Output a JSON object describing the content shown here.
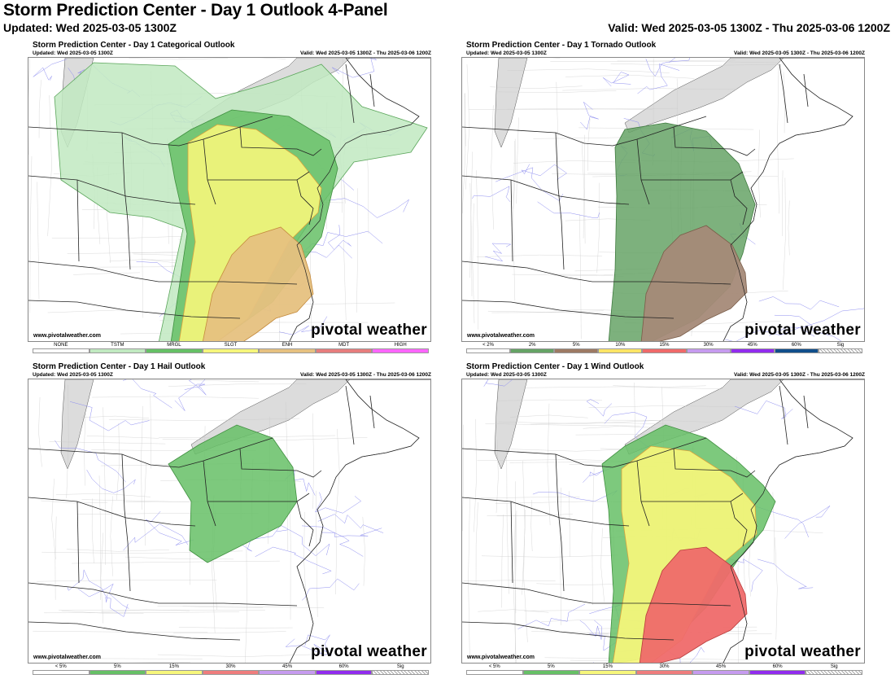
{
  "header": {
    "title": "Storm Prediction Center - Day 1 Outlook 4-Panel",
    "updated": "Updated: Wed 2025-03-05 1300Z",
    "valid": "Valid: Wed 2025-03-05 1300Z - Thu 2025-03-06 1200Z"
  },
  "panels": [
    {
      "title": "Storm Prediction Center - Day 1 Categorical Outlook",
      "updated": "Updated: Wed 2025-03-05 1300Z",
      "valid": "Valid: Wed 2025-03-05 1300Z - Thu 2025-03-06 1200Z",
      "site": "www.pivotalweather.com",
      "brand": "pivotal weather",
      "legend": [
        {
          "label": "NONE",
          "color": "#ffffff"
        },
        {
          "label": "TSTM",
          "color": "#c1e9c1"
        },
        {
          "label": "MRGL",
          "color": "#66c066"
        },
        {
          "label": "SLGT",
          "color": "#f6f67b"
        },
        {
          "label": "ENH",
          "color": "#e6c180"
        },
        {
          "label": "MDT",
          "color": "#e67d7d"
        },
        {
          "label": "HIGH",
          "color": "#ff66ff"
        }
      ]
    },
    {
      "title": "Storm Prediction Center - Day 1 Tornado Outlook",
      "updated": "Updated: Wed 2025-03-05 1300Z",
      "valid": "Valid: Wed 2025-03-05 1300Z - Thu 2025-03-06 1200Z",
      "site": "www.pivotalweather.com",
      "brand": "pivotal weather",
      "legend": [
        {
          "label": "< 2%",
          "color": "#ffffff"
        },
        {
          "label": "2%",
          "color": "#66a366"
        },
        {
          "label": "5%",
          "color": "#9d7a64"
        },
        {
          "label": "10%",
          "color": "#ffe566"
        },
        {
          "label": "15%",
          "color": "#ef6a6a"
        },
        {
          "label": "30%",
          "color": "#c69bef"
        },
        {
          "label": "45%",
          "color": "#912cee"
        },
        {
          "label": "60%",
          "color": "#104e8b"
        },
        {
          "label": "Sig",
          "color": "hatch"
        }
      ]
    },
    {
      "title": "Storm Prediction Center - Day 1 Hail Outlook",
      "updated": "Updated: Wed 2025-03-05 1300Z",
      "valid": "Valid: Wed 2025-03-05 1300Z - Thu 2025-03-06 1200Z",
      "site": "www.pivotalweather.com",
      "brand": "pivotal weather",
      "legend": [
        {
          "label": "< 5%",
          "color": "#ffffff"
        },
        {
          "label": "5%",
          "color": "#66c066"
        },
        {
          "label": "15%",
          "color": "#f6f67b"
        },
        {
          "label": "30%",
          "color": "#ef7d7d"
        },
        {
          "label": "45%",
          "color": "#c69bef"
        },
        {
          "label": "60%",
          "color": "#912cee"
        },
        {
          "label": "Sig",
          "color": "hatch"
        }
      ]
    },
    {
      "title": "Storm Prediction Center - Day 1 Wind Outlook",
      "updated": "Updated: Wed 2025-03-05 1300Z",
      "valid": "Valid: Wed 2025-03-05 1300Z - Thu 2025-03-06 1200Z",
      "site": "www.pivotalweather.com",
      "brand": "pivotal weather",
      "legend": [
        {
          "label": "< 5%",
          "color": "#ffffff"
        },
        {
          "label": "5%",
          "color": "#66c066"
        },
        {
          "label": "15%",
          "color": "#f6f67b"
        },
        {
          "label": "30%",
          "color": "#ef7d7d"
        },
        {
          "label": "45%",
          "color": "#c69bef"
        },
        {
          "label": "60%",
          "color": "#912cee"
        },
        {
          "label": "Sig",
          "color": "hatch"
        }
      ]
    }
  ]
}
